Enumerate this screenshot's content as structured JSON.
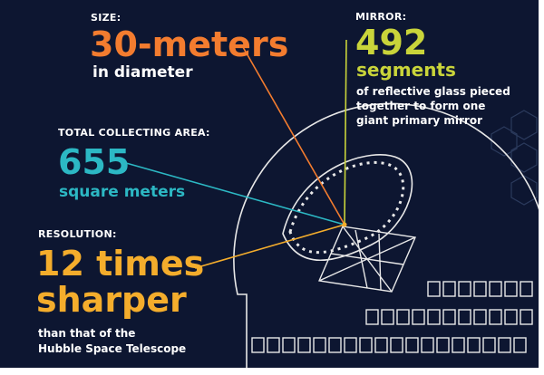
{
  "size": {
    "label": "SIZE:",
    "value": "30-meters",
    "desc": "in diameter"
  },
  "mirror": {
    "label": "MIRROR:",
    "value": "492",
    "unit": "segments",
    "desc_lines": [
      "of reflective glass pieced",
      "together to form one",
      "giant primary mirror"
    ]
  },
  "area": {
    "label": "TOTAL COLLECTING AREA:",
    "value": "655",
    "unit": "square meters"
  },
  "resolution": {
    "label": "RESOLUTION:",
    "value_lines": [
      "12 times",
      "sharper"
    ],
    "desc_lines": [
      "than that of the",
      "Hubble Space Telescope"
    ]
  },
  "colors": {
    "background": "#0d1631",
    "orange": "#f37c2f",
    "yellow_green": "#c9d43a",
    "teal": "#2cb8c4",
    "gold": "#f4ad2c",
    "line_art": "#e8e8e8"
  }
}
